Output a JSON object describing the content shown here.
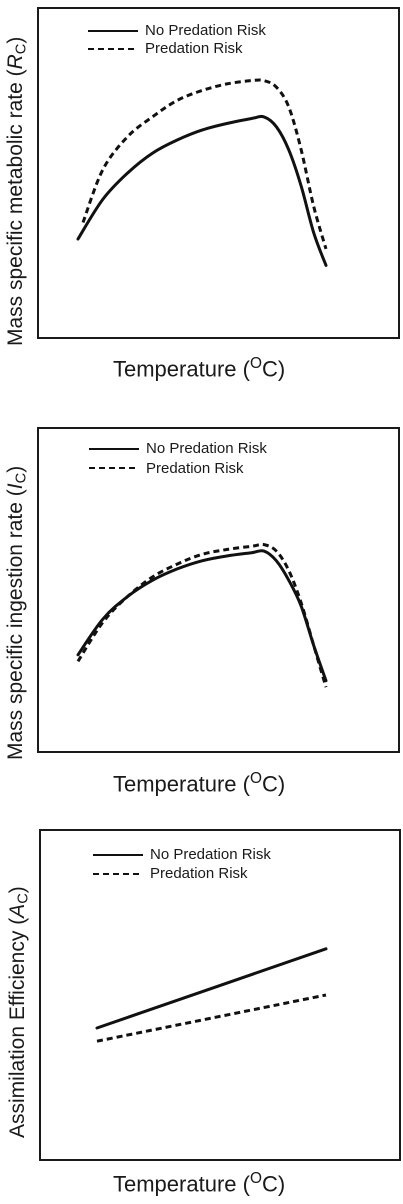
{
  "chart_data": [
    {
      "type": "line",
      "xlabel": "Temperature (OC)",
      "ylabel": "Mass specific metabolic rate (RC)",
      "xlabel_main": "Temperature (",
      "xlabel_sup": "O",
      "xlabel_end": "C)",
      "ylabel_main": "Mass specific metabolic rate (",
      "ylabel_var": "R",
      "ylabel_sub": "C",
      "ylabel_end": ")",
      "legend_position": "top-left",
      "grid": false,
      "xlim": [
        0,
        100
      ],
      "ylim": [
        0,
        100
      ],
      "series": [
        {
          "name": "No Predation Risk",
          "style": "solid",
          "x": [
            0,
            10,
            20,
            30,
            40,
            50,
            60,
            70,
            75,
            80,
            85,
            90,
            95,
            100
          ],
          "y": [
            30,
            42,
            50,
            56,
            60,
            63,
            65,
            66.5,
            67,
            64,
            57,
            46,
            32,
            22
          ]
        },
        {
          "name": "Predation Risk",
          "style": "dashed",
          "x": [
            2,
            10,
            20,
            30,
            40,
            50,
            60,
            70,
            75,
            80,
            85,
            90,
            95,
            100
          ],
          "y": [
            35,
            51,
            61,
            67,
            72,
            75,
            77,
            78,
            78,
            76,
            70,
            57,
            40,
            27
          ]
        }
      ]
    },
    {
      "type": "line",
      "xlabel": "Temperature (OC)",
      "ylabel": "Mass specific ingestion rate (IC)",
      "xlabel_main": "Temperature (",
      "xlabel_sup": "O",
      "xlabel_end": "C)",
      "ylabel_main": "Mass specific ingestion rate (",
      "ylabel_var": "I",
      "ylabel_sub": "C",
      "ylabel_end": ")",
      "legend_position": "top-left",
      "grid": false,
      "xlim": [
        0,
        100
      ],
      "ylim": [
        0,
        100
      ],
      "series": [
        {
          "name": "No Predation Risk",
          "style": "solid",
          "x": [
            0,
            10,
            20,
            30,
            40,
            50,
            60,
            70,
            75,
            80,
            85,
            90,
            95,
            100
          ],
          "y": [
            30,
            41,
            48,
            53,
            56.5,
            59,
            60.5,
            61.5,
            62,
            59,
            53,
            45,
            33,
            22
          ]
        },
        {
          "name": "Predation Risk",
          "style": "dashed",
          "x": [
            0,
            10,
            20,
            30,
            40,
            50,
            60,
            70,
            75,
            80,
            85,
            90,
            95,
            100
          ],
          "y": [
            28,
            40,
            48,
            54,
            58,
            61,
            62.5,
            63.5,
            64,
            62,
            56,
            46,
            33,
            20
          ]
        }
      ]
    },
    {
      "type": "line",
      "xlabel": "Temperature (OC)",
      "ylabel": "Assimilation Efficiency (AC)",
      "xlabel_main": "Temperature (",
      "xlabel_sup": "O",
      "xlabel_end": "C)",
      "ylabel_main": "Assimilation Efficiency (",
      "ylabel_var": "A",
      "ylabel_sub": "C",
      "ylabel_end": ")",
      "legend_position": "top-left",
      "grid": false,
      "xlim": [
        0,
        100
      ],
      "ylim": [
        0,
        100
      ],
      "series": [
        {
          "name": "No Predation Risk",
          "style": "solid",
          "x": [
            0,
            100
          ],
          "y": [
            40,
            64
          ]
        },
        {
          "name": "Predation Risk",
          "style": "dashed",
          "x": [
            0,
            100
          ],
          "y": [
            36,
            50
          ]
        }
      ]
    }
  ]
}
